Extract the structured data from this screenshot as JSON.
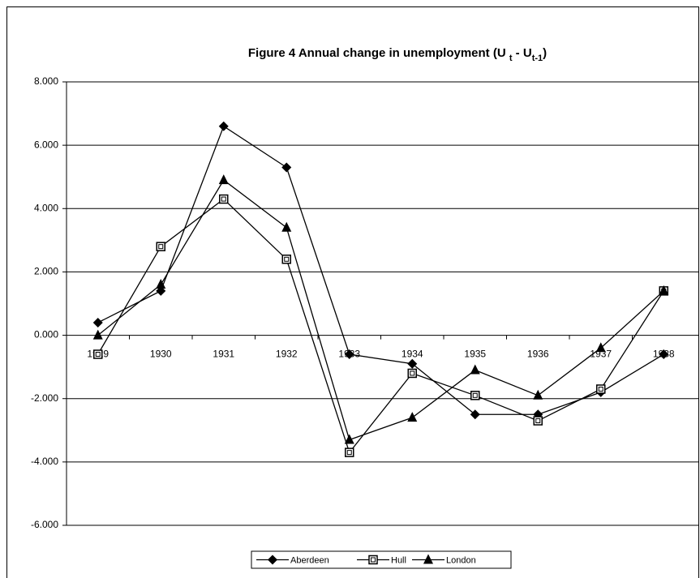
{
  "chart_data": {
    "type": "line",
    "title_parts": [
      "Figure 4  Annual change in unemployment (U ",
      "t",
      " - U",
      "t-1",
      ")"
    ],
    "categories": [
      "1929",
      "1930",
      "1931",
      "1932",
      "1933",
      "1934",
      "1935",
      "1936",
      "1937",
      "1938"
    ],
    "series": [
      {
        "name": "Aberdeen",
        "color": "#000000",
        "marker": "diamond",
        "values": [
          0.4,
          1.4,
          6.6,
          5.3,
          -0.6,
          -0.9,
          -2.5,
          -2.5,
          -1.8,
          -0.6
        ]
      },
      {
        "name": "Hull",
        "color": "#000000",
        "marker": "square",
        "values": [
          -0.6,
          2.8,
          4.3,
          2.4,
          -3.7,
          -1.2,
          -1.9,
          -2.7,
          -1.7,
          1.4
        ]
      },
      {
        "name": "London",
        "color": "#000000",
        "marker": "triangle",
        "values": [
          0.0,
          1.6,
          4.9,
          3.4,
          -3.3,
          -2.6,
          -1.1,
          -1.9,
          -0.4,
          1.4
        ]
      }
    ],
    "ylim": [
      -6,
      8
    ],
    "yticks": [
      {
        "value": -6,
        "label": "-6.000"
      },
      {
        "value": -4,
        "label": "-4.000"
      },
      {
        "value": -2,
        "label": "-2.000"
      },
      {
        "value": 0,
        "label": "0.000"
      },
      {
        "value": 2,
        "label": "2.000"
      },
      {
        "value": 4,
        "label": "4.000"
      },
      {
        "value": 6,
        "label": "6.000"
      },
      {
        "value": 8,
        "label": "8.000"
      }
    ],
    "grid": true,
    "legend": "bottom"
  }
}
